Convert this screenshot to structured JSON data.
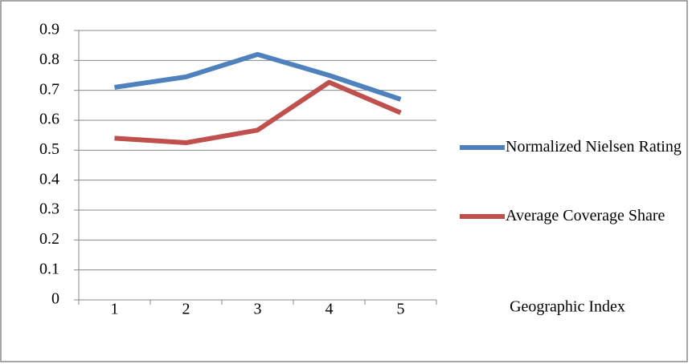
{
  "chart_data": {
    "type": "line",
    "categories": [
      "1",
      "2",
      "3",
      "4",
      "5"
    ],
    "xlabel": "Geographic Index",
    "series": [
      {
        "name": "Normalized Nielsen Rating",
        "color": "#4f81bd",
        "values": [
          0.71,
          0.745,
          0.82,
          0.75,
          0.67
        ]
      },
      {
        "name": "Average Coverage Share",
        "color": "#c0504d",
        "values": [
          0.54,
          0.525,
          0.567,
          0.727,
          0.625
        ]
      }
    ],
    "ylim": [
      0,
      0.9
    ],
    "yticks": [
      0,
      0.1,
      0.2,
      0.3,
      0.4,
      0.5,
      0.6,
      0.7,
      0.8,
      0.9
    ],
    "grid": true,
    "legend": "right"
  }
}
